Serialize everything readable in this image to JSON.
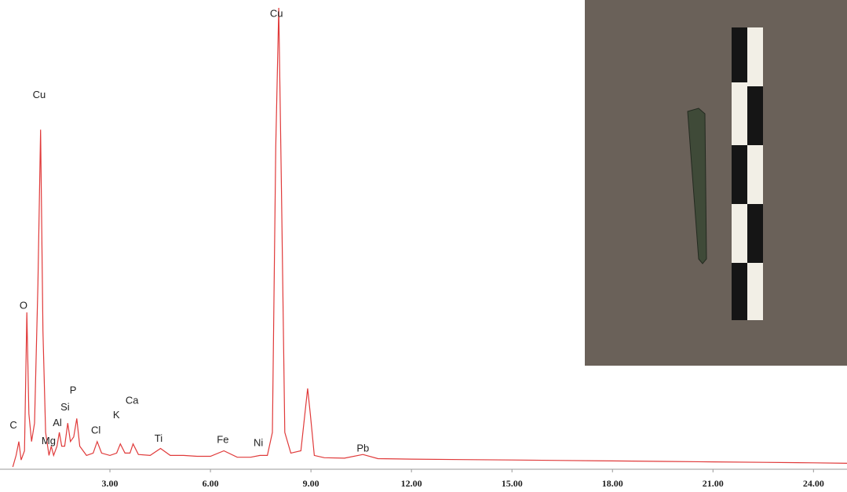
{
  "chart_data": {
    "type": "line",
    "x": [
      0.1,
      0.2,
      0.28,
      0.35,
      0.45,
      0.52,
      0.58,
      0.66,
      0.75,
      0.85,
      0.93,
      1.0,
      1.08,
      1.18,
      1.25,
      1.32,
      1.42,
      1.49,
      1.56,
      1.65,
      1.74,
      1.82,
      1.92,
      2.01,
      2.1,
      2.3,
      2.5,
      2.62,
      2.75,
      3.0,
      3.2,
      3.31,
      3.45,
      3.6,
      3.69,
      3.85,
      4.2,
      4.51,
      4.8,
      5.2,
      5.6,
      6.0,
      6.4,
      6.8,
      7.2,
      7.48,
      7.7,
      7.85,
      7.95,
      8.04,
      8.12,
      8.22,
      8.4,
      8.7,
      8.82,
      8.9,
      8.98,
      9.1,
      9.4,
      10.0,
      10.55,
      11.0,
      12.0,
      13.5,
      15.0,
      16.5,
      18.0,
      19.5,
      21.0,
      22.5,
      24.0,
      25.0
    ],
    "series": [
      {
        "color": "#e03a3a",
        "values": [
          0.5,
          3,
          6,
          2,
          4,
          34,
          12,
          6,
          10,
          40,
          73.6,
          30,
          8,
          3,
          5,
          3,
          5,
          8,
          5,
          5,
          10,
          6,
          7,
          11,
          5,
          3,
          3.5,
          6,
          3.5,
          3,
          3.5,
          5.5,
          3.5,
          3.5,
          5.5,
          3.2,
          3,
          4.5,
          3,
          3,
          2.8,
          2.8,
          4,
          2.6,
          2.6,
          3,
          3,
          8,
          70,
          100,
          60,
          8,
          3.5,
          4,
          12,
          17.5,
          12,
          3,
          2.5,
          2.4,
          3.2,
          2.3,
          2.2,
          2.1,
          2,
          1.9,
          1.8,
          1.7,
          1.6,
          1.5,
          1.4,
          1.3
        ]
      }
    ],
    "xlim": [
      0,
      25
    ],
    "ylim": [
      0,
      101.7
    ],
    "xticks": [
      {
        "value": 3,
        "label": "3.00"
      },
      {
        "value": 6,
        "label": "6.00"
      },
      {
        "value": 9,
        "label": "9.00"
      },
      {
        "value": 12,
        "label": "12.00"
      },
      {
        "value": 15,
        "label": "15.00"
      },
      {
        "value": 18,
        "label": "18.00"
      },
      {
        "value": 21,
        "label": "21.00"
      },
      {
        "value": 24,
        "label": "24.00"
      }
    ],
    "annotations": [
      {
        "text": "Cu",
        "x": 7.97,
        "y": 98.6
      },
      {
        "text": "Cu",
        "x": 0.89,
        "y": 81
      },
      {
        "text": "O",
        "x": 0.42,
        "y": 35.4
      },
      {
        "text": "C",
        "x": 0.12,
        "y": 9.4
      },
      {
        "text": "Mg",
        "x": 1.17,
        "y": 6
      },
      {
        "text": "Al",
        "x": 1.43,
        "y": 9.9
      },
      {
        "text": "Si",
        "x": 1.66,
        "y": 13.3
      },
      {
        "text": "P",
        "x": 1.9,
        "y": 17
      },
      {
        "text": "Cl",
        "x": 2.58,
        "y": 8.3
      },
      {
        "text": "K",
        "x": 3.19,
        "y": 11.6
      },
      {
        "text": "Ca",
        "x": 3.66,
        "y": 14.8
      },
      {
        "text": "Ti",
        "x": 4.45,
        "y": 6.5
      },
      {
        "text": "Fe",
        "x": 6.37,
        "y": 6.3
      },
      {
        "text": "Ni",
        "x": 7.43,
        "y": 5.6
      },
      {
        "text": "Pb",
        "x": 10.55,
        "y": 4.4
      }
    ]
  }
}
